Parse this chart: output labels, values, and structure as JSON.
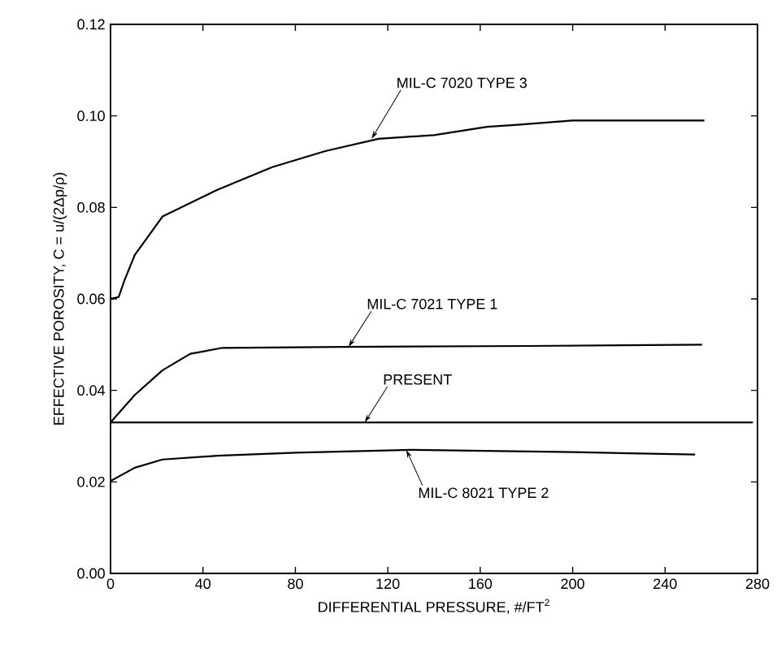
{
  "chart_data": {
    "type": "line",
    "xlabel": "DIFFERENTIAL PRESSURE, #/FT$^{2}$",
    "ylabel": "EFFECTIVE POROSITY, C = u/(2Δp/ρ)",
    "xlim": [
      0,
      280
    ],
    "ylim": [
      0,
      0.12
    ],
    "xticks": [
      0,
      40,
      80,
      120,
      160,
      200,
      240,
      280
    ],
    "yticks": [
      {
        "value": 0,
        "label": "0.00"
      },
      {
        "value": 0.02,
        "label": "0.02"
      },
      {
        "value": 0.04,
        "label": "0.04"
      },
      {
        "value": 0.06,
        "label": "0.06"
      },
      {
        "value": 0.08,
        "label": "0.08"
      },
      {
        "value": 0.1,
        "label": "0.10"
      },
      {
        "value": 0.12,
        "label": "0.12"
      }
    ],
    "grid": false,
    "marker": "none",
    "line_style": "solid",
    "series": [
      {
        "color": "#000000",
        "x": [
          0,
          3.5,
          6,
          10.5,
          22.5,
          46,
          70,
          93,
          116,
          140,
          163,
          175,
          200,
          257
        ],
        "values": [
          0.06,
          0.0604,
          0.064,
          0.0696,
          0.078,
          0.0838,
          0.0888,
          0.0923,
          0.095,
          0.0958,
          0.0976,
          0.098,
          0.099,
          0.099
        ]
      },
      {
        "color": "#000000",
        "x": [
          0,
          10.5,
          22.5,
          34.5,
          48.5,
          100,
          180,
          256
        ],
        "values": [
          0.033,
          0.039,
          0.0444,
          0.048,
          0.0493,
          0.0495,
          0.0497,
          0.05
        ]
      },
      {
        "color": "#000000",
        "x": [
          0,
          278
        ],
        "values": [
          0.033,
          0.033
        ]
      },
      {
        "color": "#000000",
        "x": [
          0,
          10.5,
          22.5,
          46,
          80,
          130,
          200,
          253
        ],
        "values": [
          0.0202,
          0.0231,
          0.0249,
          0.0257,
          0.0264,
          0.027,
          0.0265,
          0.026
        ]
      }
    ],
    "annotations": [
      {
        "text": "MIL-C 7020 TYPE 3",
        "x": 113,
        "y": 0.095
      },
      {
        "text": "MIL-C 7021 TYPE 1",
        "x": 103,
        "y": 0.0495
      },
      {
        "text": "PRESENT",
        "x": 110,
        "y": 0.033
      },
      {
        "text": "MIL-C 8021 TYPE 2",
        "x": 128,
        "y": 0.027
      }
    ]
  }
}
